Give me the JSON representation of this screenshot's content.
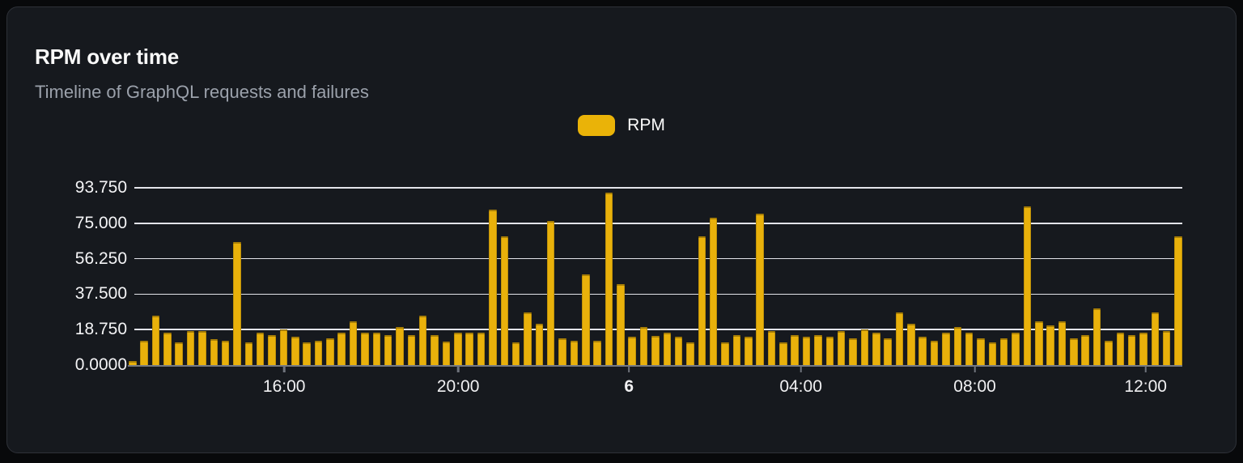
{
  "card": {
    "title": "RPM over time",
    "subtitle": "Timeline of GraphQL requests and failures"
  },
  "legend": {
    "label": "RPM",
    "swatch_color": "#eab308"
  },
  "chart_data": {
    "type": "bar",
    "title": "RPM over time",
    "subtitle": "Timeline of GraphQL requests and failures",
    "series_name": "RPM",
    "ylim": [
      0,
      93.75
    ],
    "grid": true,
    "legend_position": "top-center",
    "bar_color": "#e9b10b",
    "y_ticks": [
      {
        "label": "0.0000",
        "value": 0
      },
      {
        "label": "18.750",
        "value": 18.75
      },
      {
        "label": "37.500",
        "value": 37.5
      },
      {
        "label": "56.250",
        "value": 56.25
      },
      {
        "label": "75.000",
        "value": 75
      },
      {
        "label": "93.750",
        "value": 93.75
      }
    ],
    "x_ticks": [
      {
        "label": "16:00",
        "pos": 0.143,
        "bold": false
      },
      {
        "label": "20:00",
        "pos": 0.309,
        "bold": false
      },
      {
        "label": "6",
        "pos": 0.472,
        "bold": true
      },
      {
        "label": "04:00",
        "pos": 0.636,
        "bold": false
      },
      {
        "label": "08:00",
        "pos": 0.802,
        "bold": false
      },
      {
        "label": "12:00",
        "pos": 0.965,
        "bold": false
      }
    ],
    "values": [
      2,
      13,
      26,
      17,
      12,
      18,
      18,
      13.5,
      13,
      65,
      12,
      17,
      16,
      19,
      15,
      12,
      13,
      14,
      17,
      23,
      17,
      17,
      16,
      20,
      16,
      26,
      16,
      12.5,
      17,
      17,
      17,
      82,
      68,
      12,
      28,
      22,
      76,
      14,
      13,
      48,
      13,
      91,
      43,
      15,
      20,
      15.5,
      17,
      15,
      12,
      68,
      78,
      12,
      16,
      15,
      80,
      18,
      12,
      16,
      15,
      16,
      15,
      18,
      14,
      19,
      17,
      14,
      28,
      22,
      15,
      13,
      17,
      20,
      17,
      14,
      12,
      14,
      17,
      84,
      23,
      21,
      23,
      14,
      16,
      30,
      13,
      17,
      16,
      17,
      28,
      18,
      68
    ]
  }
}
